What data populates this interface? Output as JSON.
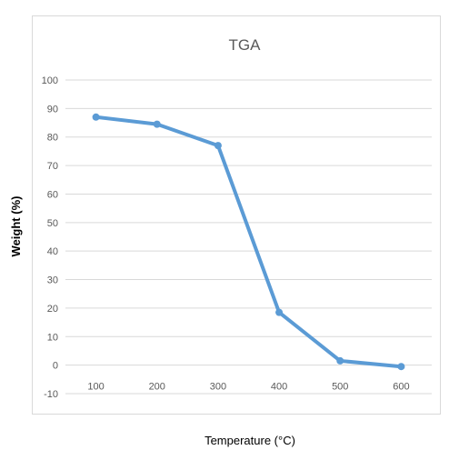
{
  "chart_data": {
    "type": "line",
    "title": "TGA",
    "xlabel": "Temperature (°C)",
    "ylabel": "Weight (%)",
    "categories": [
      "100",
      "200",
      "300",
      "400",
      "500",
      "600"
    ],
    "series": [
      {
        "values": [
          87,
          84.5,
          77,
          18.5,
          1.5,
          -0.5
        ]
      }
    ],
    "ylim": [
      -10,
      100
    ],
    "yticks": [
      -10,
      0,
      10,
      20,
      30,
      40,
      50,
      60,
      70,
      80,
      90,
      100
    ],
    "grid": true,
    "legend": "none",
    "colors": {
      "series": "#5b9bd5",
      "grid": "#d9d9d9",
      "text": "#595959"
    }
  }
}
